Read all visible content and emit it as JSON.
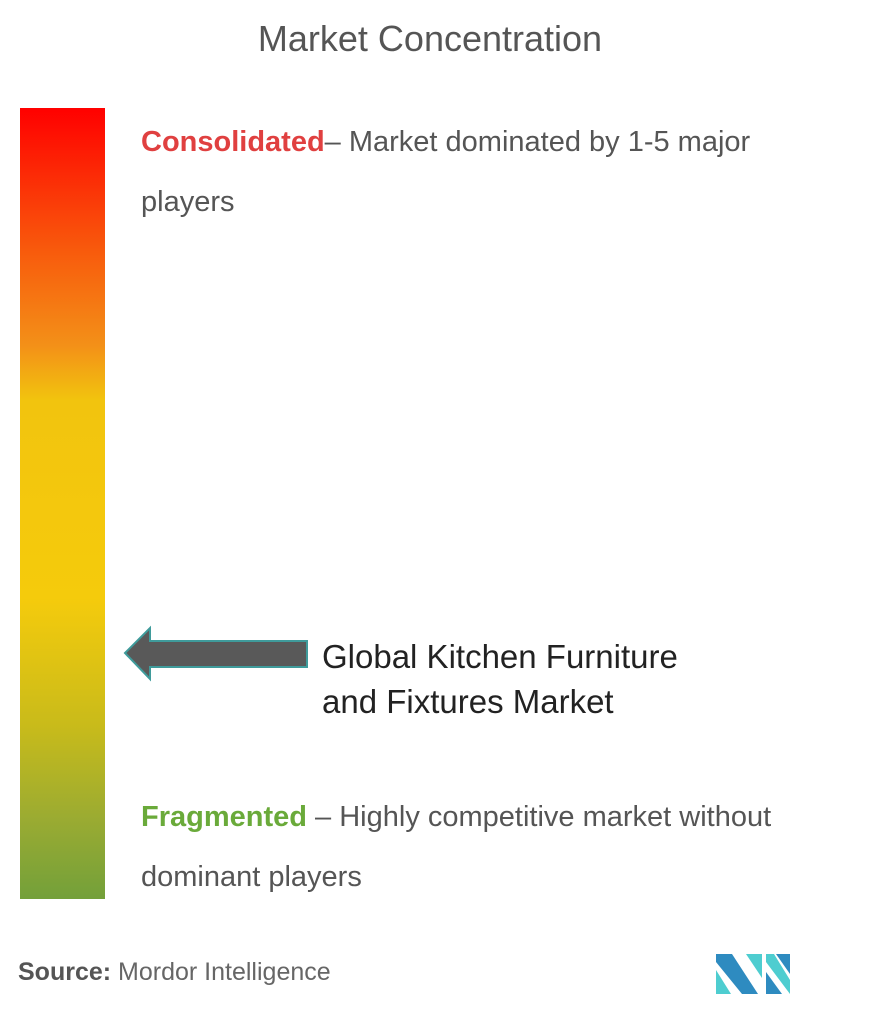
{
  "title": "Market Concentration",
  "scale": {
    "top_color": "#ff0000",
    "bottom_color": "#73a03a",
    "consolidated": {
      "keyword": "Consolidated",
      "description": "– Market dominated by 1-5 major players",
      "color": "#e04040"
    },
    "fragmented": {
      "keyword": "Fragmented",
      "description": " – Highly competitive market without dominant players",
      "color": "#6aaa3a"
    }
  },
  "marker": {
    "icon": "left-arrow-icon",
    "label": "Global Kitchen Furniture and Fixtures Market",
    "position_level": 0.31
  },
  "source": {
    "label": "Source:",
    "value": " Mordor Intelligence"
  },
  "logo": {
    "icon": "mordor-intelligence-logo"
  }
}
